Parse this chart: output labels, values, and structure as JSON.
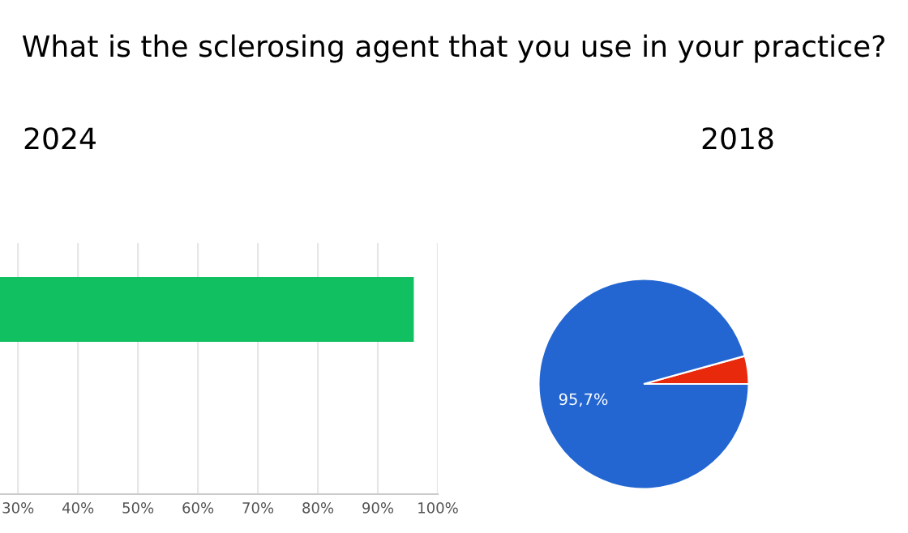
{
  "chart_data": [
    {
      "type": "bar",
      "title": "What is the sclerosing agent that you use in your practice?",
      "subtitle": "2024",
      "orientation": "horizontal",
      "categories": [
        null
      ],
      "values": [
        96
      ],
      "color": "#11c060",
      "xlim": [
        27,
        100
      ],
      "xticks": [
        {
          "value": 30,
          "label": "30%"
        },
        {
          "value": 40,
          "label": "40%"
        },
        {
          "value": 50,
          "label": "50%"
        },
        {
          "value": 60,
          "label": "60%"
        },
        {
          "value": 70,
          "label": "70%"
        },
        {
          "value": 80,
          "label": "80%"
        },
        {
          "value": 90,
          "label": "90%"
        },
        {
          "value": 100,
          "label": "100%"
        }
      ],
      "grid": "x",
      "legend": false
    },
    {
      "type": "pie",
      "title": "2018",
      "categories": [
        null,
        null
      ],
      "values": [
        4.3,
        95.7
      ],
      "colors": [
        "#e8290b",
        "#2366d1"
      ],
      "value_labels": [
        null,
        "95,7%"
      ],
      "legend": false
    }
  ]
}
